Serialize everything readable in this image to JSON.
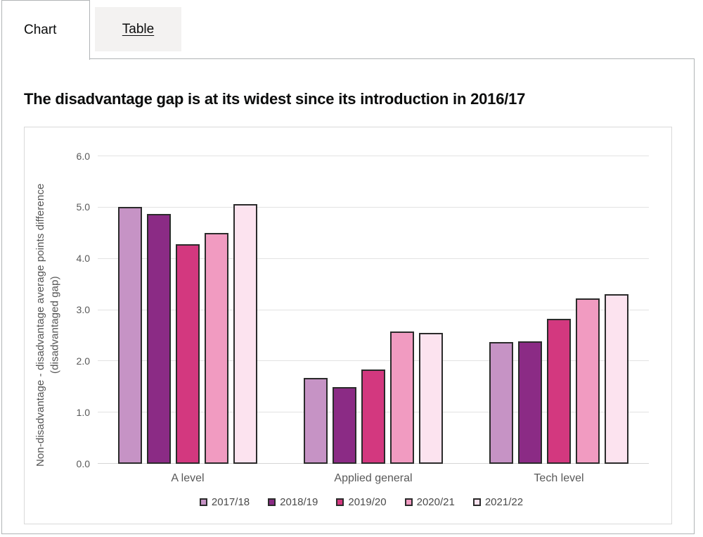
{
  "tabs": {
    "chart_label": "Chart",
    "table_label": "Table"
  },
  "title": "The disadvantage gap is at its widest since its introduction in 2016/17",
  "colors": {
    "panel_border": "#b1b4b6",
    "inactive_tab_bg": "#f3f2f1",
    "chart_box_border": "#d9d9d9",
    "gridline": "#e2e2e2",
    "bar_border": "#2b2b2b",
    "axis_text": "#595959"
  },
  "chart_data": {
    "type": "bar",
    "title": "The disadvantage gap is at its widest since its introduction in 2016/17",
    "categories": [
      "A level",
      "Applied general",
      "Tech level"
    ],
    "series": [
      {
        "name": "2017/18",
        "color": "#c693c5",
        "values": [
          5.01,
          1.68,
          2.37
        ]
      },
      {
        "name": "2018/19",
        "color": "#8b2b85",
        "values": [
          4.88,
          1.49,
          2.39
        ]
      },
      {
        "name": "2019/20",
        "color": "#d3387f",
        "values": [
          4.28,
          1.84,
          2.83
        ]
      },
      {
        "name": "2020/21",
        "color": "#f19bc1",
        "values": [
          4.51,
          2.58,
          3.22
        ]
      },
      {
        "name": "2021/22",
        "color": "#fce3ef",
        "values": [
          5.07,
          2.56,
          3.31
        ]
      }
    ],
    "xlabel": "",
    "ylabel": "Non-disadvantage - disadvantage average points difference (disadvantaged gap)",
    "ylim": [
      0,
      6
    ],
    "ytick_step": 1,
    "ytick_decimals": 1,
    "grid": true,
    "legend_position": "bottom"
  }
}
